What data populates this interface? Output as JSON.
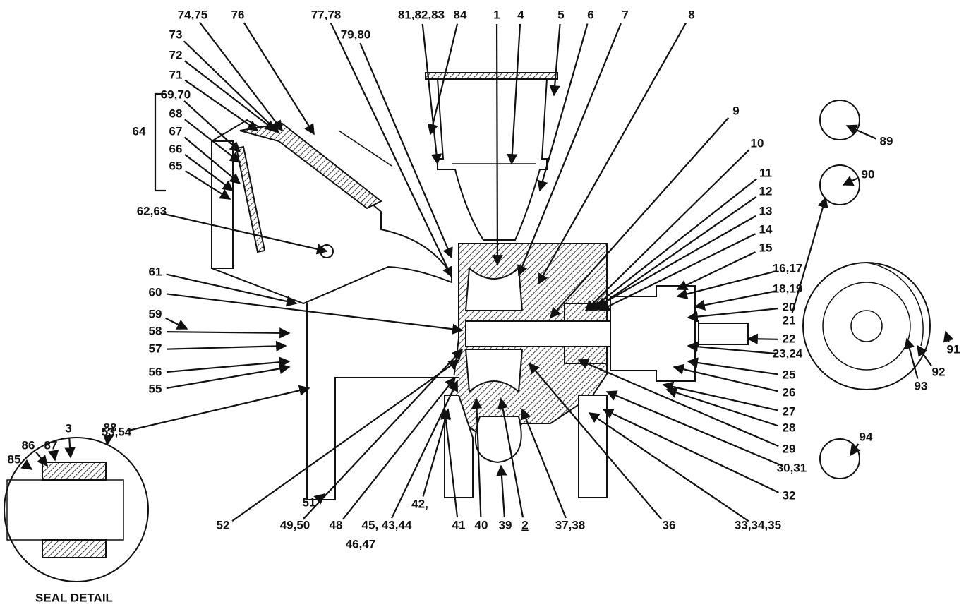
{
  "callouts": [
    "74,75",
    "76",
    "77,78",
    "81,82,83",
    "84",
    "1",
    "4",
    "5",
    "6",
    "7",
    "8",
    "73",
    "79,80",
    "72",
    "71",
    "69,70",
    "68",
    "67",
    "66",
    "65",
    "64",
    "62,63",
    "61",
    "60",
    "59",
    "58",
    "57",
    "56",
    "55",
    "53,54",
    "9",
    "10",
    "11",
    "12",
    "13",
    "14",
    "15",
    "16,17",
    "18,19",
    "20",
    "21",
    "22",
    "23,24",
    "25",
    "26",
    "27",
    "28",
    "29",
    "30,31",
    "32",
    "89",
    "90",
    "91",
    "92",
    "93",
    "94",
    "52",
    "49,50",
    "48",
    "45, 43,44",
    "42,",
    "46,47",
    "41",
    "40",
    "39",
    "2",
    "37,38",
    "36",
    "33,34,35",
    "51",
    "85",
    "86",
    "87",
    "3",
    "88"
  ],
  "seal_detail_title": "SEAL DETAIL"
}
